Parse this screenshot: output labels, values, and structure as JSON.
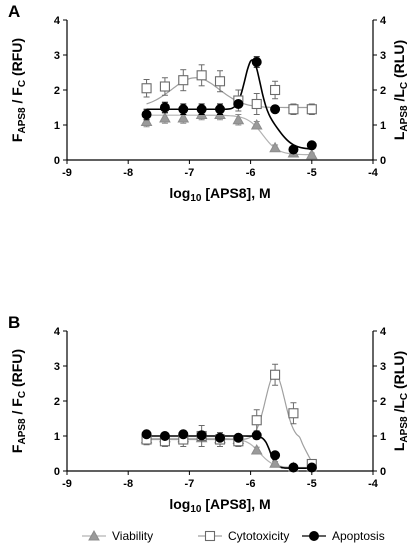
{
  "legend": [
    {
      "label": "Viability",
      "marker": "triangle",
      "color": "#999999"
    },
    {
      "label": "Cytotoxicity",
      "marker": "square-open",
      "color": "#777777"
    },
    {
      "label": "Apoptosis",
      "marker": "circle",
      "color": "#000000"
    }
  ],
  "axis_text": {
    "left_main": "F",
    "left_sub1": "APS8",
    "left_mid": " / F",
    "left_sub2": "C",
    "left_unit": " (RFU)",
    "right_main": "L",
    "right_sub1": "APS8",
    "right_mid": " /L",
    "right_sub2": "C",
    "right_unit": " (RLU)",
    "x_pre": "log",
    "x_sub": "10",
    "x_post": " [APS8], M"
  },
  "chart_data": [
    {
      "panel": "A",
      "type": "scatter",
      "xlim": [
        -9,
        -4
      ],
      "ylim_left": [
        0,
        4
      ],
      "ylim_right": [
        0,
        4
      ],
      "xticks": [
        -9,
        -8,
        -7,
        -6,
        -5,
        -4
      ],
      "yticks": [
        0,
        1,
        2,
        3,
        4
      ],
      "series": [
        {
          "label": "Viability",
          "axis": "left",
          "x": [
            -7.7,
            -7.4,
            -7.1,
            -6.8,
            -6.5,
            -6.2,
            -5.9,
            -5.6,
            -5.3,
            -5.0
          ],
          "y": [
            1.1,
            1.2,
            1.2,
            1.3,
            1.3,
            1.15,
            1.0,
            0.35,
            0.2,
            0.15
          ],
          "err": [
            0.15,
            0.15,
            0.15,
            0.15,
            0.15,
            0.15,
            0.1,
            0.08,
            0.05,
            0.05
          ]
        },
        {
          "label": "Cytotoxicity",
          "axis": "left",
          "x": [
            -7.7,
            -7.4,
            -7.1,
            -6.8,
            -6.5,
            -6.2,
            -5.9,
            -5.6,
            -5.3,
            -5.0
          ],
          "y": [
            2.05,
            2.1,
            2.28,
            2.42,
            2.25,
            1.7,
            1.6,
            2.0,
            1.45,
            1.45
          ],
          "err": [
            0.25,
            0.25,
            0.3,
            0.3,
            0.3,
            0.3,
            0.3,
            0.25,
            0.15,
            0.15
          ]
        },
        {
          "label": "Apoptosis",
          "axis": "right",
          "x": [
            -7.7,
            -7.4,
            -7.1,
            -6.8,
            -6.5,
            -6.2,
            -5.9,
            -5.6,
            -5.3,
            -5.0
          ],
          "y": [
            1.3,
            1.5,
            1.45,
            1.45,
            1.45,
            1.6,
            2.8,
            1.45,
            0.3,
            0.42
          ],
          "err": [
            0.15,
            0.15,
            0.15,
            0.15,
            0.15,
            0.1,
            0.15,
            0.1,
            0.05,
            0.05
          ]
        }
      ]
    },
    {
      "panel": "B",
      "type": "scatter",
      "xlim": [
        -9,
        -4
      ],
      "ylim_left": [
        0,
        4
      ],
      "ylim_right": [
        0,
        4
      ],
      "xticks": [
        -9,
        -8,
        -7,
        -6,
        -5,
        -4
      ],
      "yticks": [
        0,
        1,
        2,
        3,
        4
      ],
      "series": [
        {
          "label": "Viability",
          "axis": "left",
          "x": [
            -7.7,
            -7.4,
            -7.1,
            -6.8,
            -6.5,
            -6.2,
            -5.9,
            -5.6,
            -5.3,
            -5.0
          ],
          "y": [
            0.92,
            0.95,
            0.95,
            0.95,
            0.92,
            0.9,
            0.6,
            0.22,
            0.1,
            0.1
          ],
          "err": [
            0.08,
            0.08,
            0.1,
            0.1,
            0.08,
            0.08,
            0.08,
            0.05,
            0.03,
            0.03
          ]
        },
        {
          "label": "Cytotoxicity",
          "axis": "left",
          "x": [
            -7.7,
            -7.4,
            -7.1,
            -6.8,
            -6.5,
            -6.2,
            -5.9,
            -5.6,
            -5.3,
            -5.0
          ],
          "y": [
            0.9,
            0.85,
            0.9,
            1.0,
            0.9,
            0.85,
            1.45,
            2.75,
            1.65,
            0.2
          ],
          "err": [
            0.15,
            0.15,
            0.2,
            0.3,
            0.2,
            0.15,
            0.3,
            0.3,
            0.3,
            0.1
          ]
        },
        {
          "label": "Apoptosis",
          "axis": "right",
          "x": [
            -7.7,
            -7.4,
            -7.1,
            -6.8,
            -6.5,
            -6.2,
            -5.9,
            -5.6,
            -5.3,
            -5.0
          ],
          "y": [
            1.05,
            1.0,
            1.05,
            1.02,
            0.95,
            0.95,
            1.02,
            0.45,
            0.1,
            0.1
          ],
          "err": [
            0.05,
            0.08,
            0.1,
            0.08,
            0.05,
            0.05,
            0.05,
            0.05,
            0.03,
            0.03
          ]
        }
      ]
    }
  ]
}
